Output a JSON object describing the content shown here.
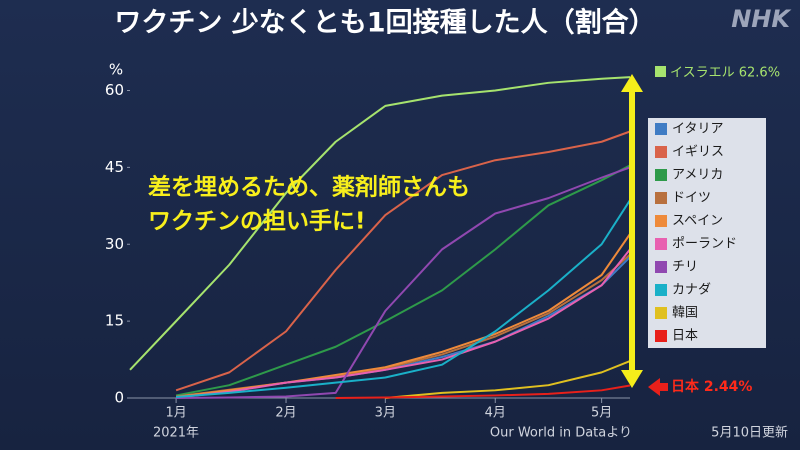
{
  "chart_data": {
    "type": "line",
    "title": "ワクチン 少なくとも1回接種した人（割合）",
    "logo": "NHK",
    "y_unit": "%",
    "x_sublabel": "2021年",
    "callout": [
      "差を埋めるため、薬剤師さんも",
      "ワクチンの担い手に!"
    ],
    "annotations": {
      "israel": "イスラエル 62.6%",
      "japan": "日本 2.44%"
    },
    "source": "Our World in Dataより",
    "updated": "5月10日更新",
    "x": [
      -13,
      0,
      15,
      31,
      45,
      59,
      75,
      90,
      105,
      120,
      128
    ],
    "xlim": [
      -13,
      128
    ],
    "xticks": [
      {
        "value": 0,
        "label": "1月"
      },
      {
        "value": 31,
        "label": "2月"
      },
      {
        "value": 59,
        "label": "3月"
      },
      {
        "value": 90,
        "label": "4月"
      },
      {
        "value": 120,
        "label": "5月"
      }
    ],
    "ylim": [
      0,
      64
    ],
    "yticks": [
      0,
      15,
      30,
      45,
      60
    ],
    "grid": false,
    "legend": "right",
    "series": [
      {
        "name": "イスラエル",
        "color": "#a6e36e",
        "legend": false,
        "values": [
          5.5,
          15,
          26,
          40,
          50,
          57,
          59,
          60,
          61.5,
          62.3,
          62.6
        ]
      },
      {
        "name": "イタリア",
        "color": "#3f7cc4",
        "values": [
          null,
          0.2,
          1.5,
          3,
          4,
          5.5,
          8,
          11,
          16,
          22,
          27.5
        ]
      },
      {
        "name": "イギリス",
        "color": "#d9634a",
        "values": [
          null,
          1.5,
          5,
          13,
          25,
          35.7,
          43.5,
          46.4,
          48,
          50,
          52
        ]
      },
      {
        "name": "アメリカ",
        "color": "#2e9a4a",
        "values": [
          null,
          0.5,
          2.5,
          6.5,
          10,
          15,
          21,
          29,
          37.6,
          42.5,
          45.4
        ]
      },
      {
        "name": "ドイツ",
        "color": "#b8703e",
        "values": [
          null,
          0.3,
          1.6,
          3,
          4.2,
          5.8,
          8.5,
          12,
          16.5,
          23,
          28
        ]
      },
      {
        "name": "スペイン",
        "color": "#ee8a3a",
        "values": [
          null,
          0.2,
          1.5,
          3,
          4.5,
          6,
          9,
          12.5,
          17,
          24,
          32
        ]
      },
      {
        "name": "ポーランド",
        "color": "#e860b0",
        "values": [
          null,
          0.1,
          1.2,
          3,
          4,
          5.5,
          7.5,
          11,
          15.5,
          22,
          29
        ]
      },
      {
        "name": "チリ",
        "color": "#9048b0",
        "values": [
          null,
          0,
          0.1,
          0.3,
          1,
          17,
          29,
          36,
          39,
          43,
          45
        ]
      },
      {
        "name": "カナダ",
        "color": "#1ab0c8",
        "values": [
          null,
          0.2,
          1,
          2,
          3,
          4,
          6.5,
          13,
          21,
          30,
          38.6
        ]
      },
      {
        "name": "韓国",
        "color": "#e0c020",
        "values": [
          null,
          null,
          null,
          null,
          null,
          0,
          1,
          1.5,
          2.5,
          5,
          7.2
        ]
      },
      {
        "name": "日本",
        "color": "#e8201a",
        "values": [
          null,
          null,
          null,
          null,
          0,
          0.1,
          0.3,
          0.5,
          0.8,
          1.5,
          2.44
        ]
      }
    ]
  }
}
